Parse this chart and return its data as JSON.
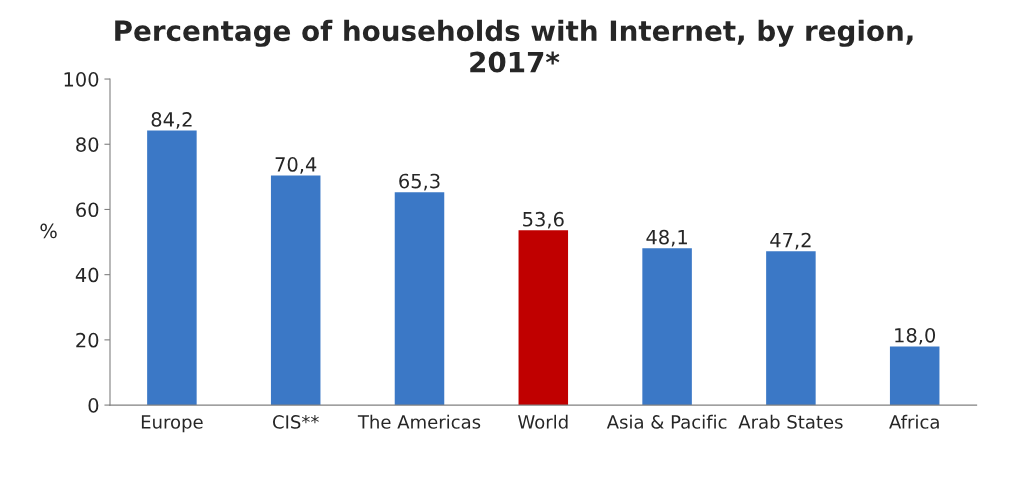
{
  "chart_data": {
    "type": "bar",
    "title": "Percentage of households with Internet, by region, 2017*",
    "ylabel": "%",
    "categories": [
      "Europe",
      "CIS**",
      "The Americas",
      "World",
      "Asia & Pacific",
      "Arab States",
      "Africa"
    ],
    "values": [
      84.2,
      70.4,
      65.3,
      53.6,
      48.1,
      47.2,
      18.0
    ],
    "value_labels": [
      "84,2",
      "70,4",
      "65,3",
      "53,6",
      "48,1",
      "47,2",
      "18,0"
    ],
    "colors": [
      "#3b78c6",
      "#3b78c6",
      "#3b78c6",
      "#c00000",
      "#3b78c6",
      "#3b78c6",
      "#3b78c6"
    ],
    "ylim": [
      0,
      100
    ],
    "yticks": [
      0,
      20,
      40,
      60,
      80,
      100
    ],
    "grid": false,
    "legend": false
  }
}
